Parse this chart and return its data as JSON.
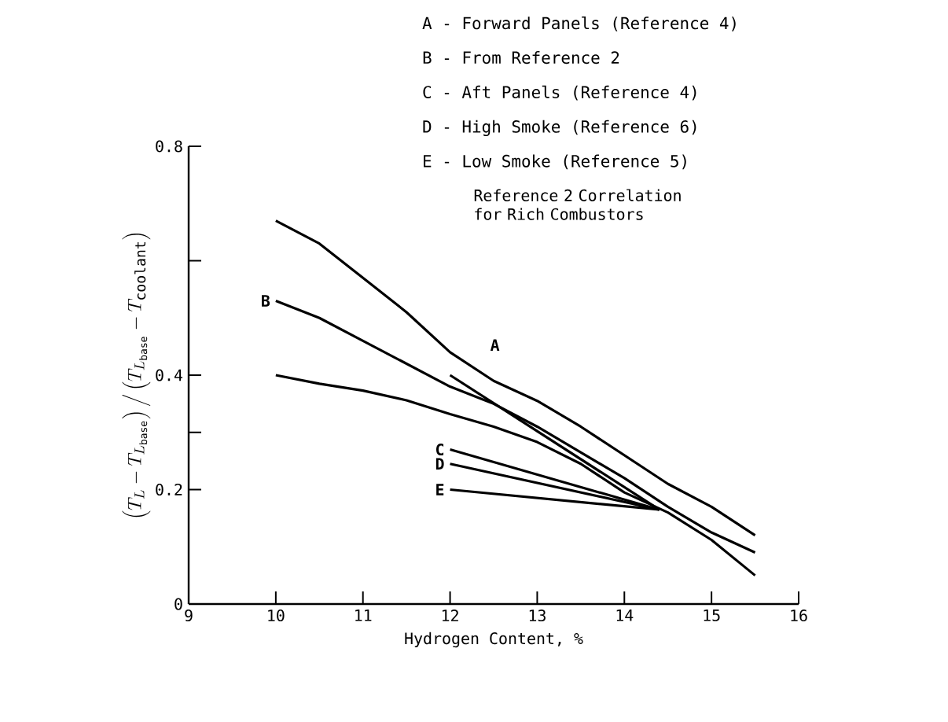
{
  "chart_data": {
    "type": "line",
    "xlabel": "Hydrogen Content, %",
    "ylabel": "\\left(T_L-T_{L_{\\mathrm{base}}}\\right)\\Big/\\left(T_{L_{\\mathrm{base}}}-T_{\\mathrm{coolant}}\\right)",
    "xlim": [
      9,
      16
    ],
    "xticks": [
      9,
      10,
      11,
      12,
      13,
      14,
      15,
      16
    ],
    "ylim": [
      0,
      0.8
    ],
    "yticks": [
      0,
      0.2,
      {
        "value": 0.3,
        "label": null
      },
      0.4,
      {
        "value": 0.6,
        "label": null
      },
      0.8
    ],
    "series": [
      {
        "name": "A",
        "color": "#000000",
        "x": [
          12,
          14.4
        ],
        "values": [
          0.4,
          0.165
        ]
      },
      {
        "color": "#000000",
        "x": [
          10,
          10.5,
          11,
          11.5,
          12,
          12.5,
          13,
          13.5,
          14,
          14.5,
          15,
          15.5
        ],
        "values": [
          0.67,
          0.63,
          0.57,
          0.51,
          0.44,
          0.39,
          0.355,
          0.31,
          0.26,
          0.21,
          0.17,
          0.12
        ]
      },
      {
        "name": "B",
        "color": "#000000",
        "x": [
          10,
          10.5,
          11,
          11.5,
          12,
          12.5,
          13,
          13.5,
          14,
          14.5,
          15,
          15.5
        ],
        "values": [
          0.53,
          0.5,
          0.46,
          0.42,
          0.38,
          0.35,
          0.31,
          0.265,
          0.22,
          0.17,
          0.125,
          0.09
        ]
      },
      {
        "color": "#000000",
        "x": [
          10,
          10.5,
          11,
          11.5,
          12,
          12.5,
          13,
          13.5,
          14,
          14.5,
          15,
          15.5
        ],
        "values": [
          0.4,
          0.385,
          0.373,
          0.356,
          0.332,
          0.31,
          0.283,
          0.245,
          0.195,
          0.16,
          0.112,
          0.05
        ]
      },
      {
        "name": "C",
        "color": "#000000",
        "x": [
          12,
          14.4
        ],
        "values": [
          0.27,
          0.165
        ]
      },
      {
        "name": "D",
        "color": "#000000",
        "x": [
          12,
          14.4
        ],
        "values": [
          0.245,
          0.165
        ]
      },
      {
        "name": "E",
        "color": "#000000",
        "x": [
          12,
          14.4
        ],
        "values": [
          0.2,
          0.165
        ]
      }
    ],
    "annotations": [
      "A - Forward Panels (Reference 4)",
      "B - From Reference 2",
      "C - Aft Panels (Reference 4)",
      "D - High Smoke (Reference 6)",
      "E - Low Smoke (Reference 5)",
      "Reference 2 Correlation for Rich Combustors"
    ]
  }
}
